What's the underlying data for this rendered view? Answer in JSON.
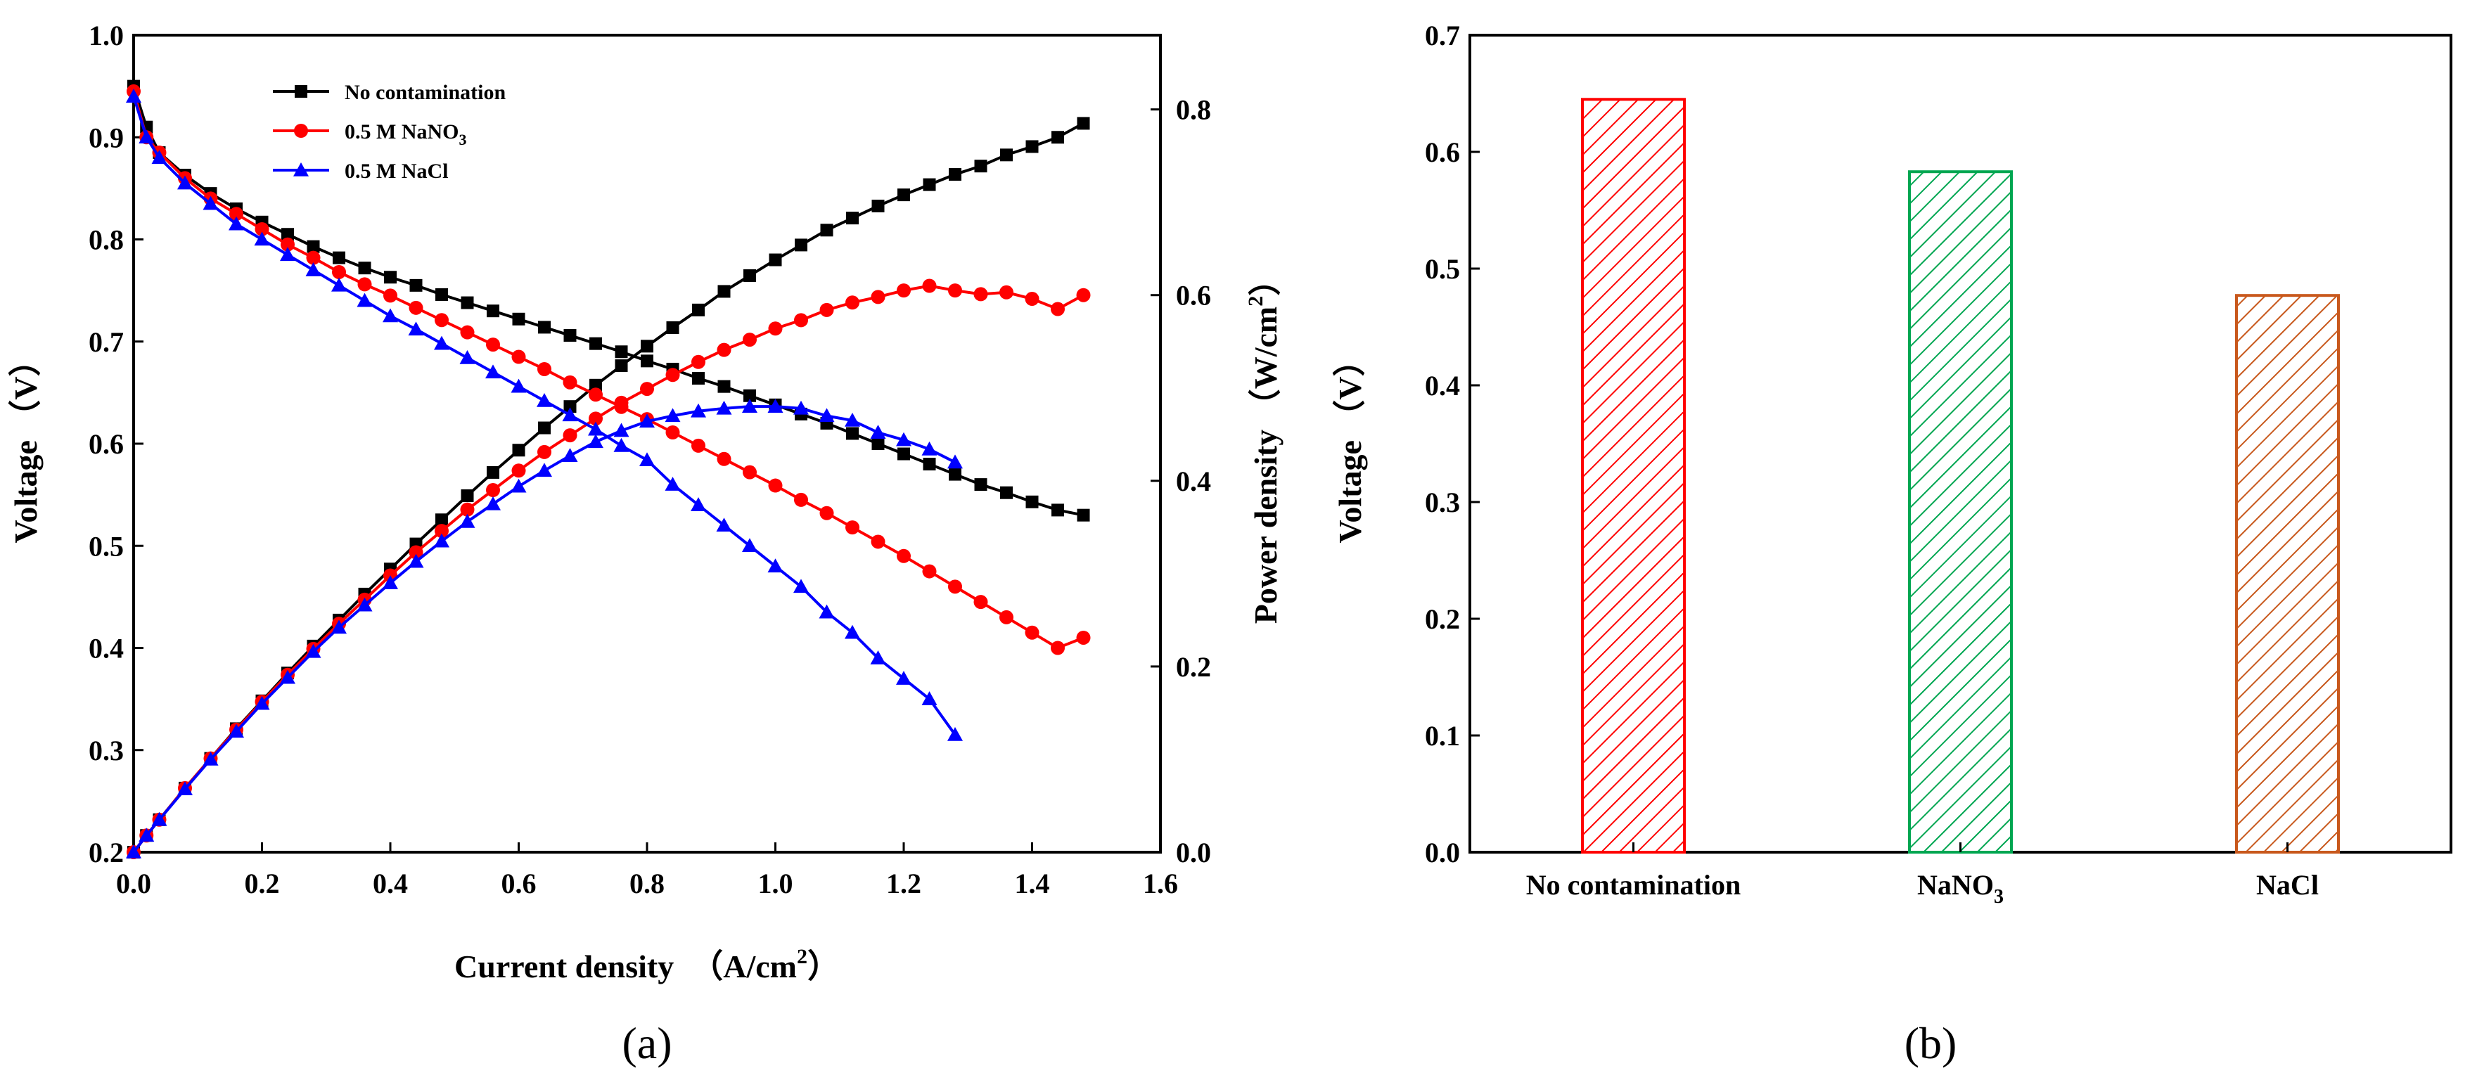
{
  "chart_data": [
    {
      "panel": "(a)",
      "type": "line",
      "xlabel_main": "Current density",
      "xlabel_unit": "（A/cm",
      "xlabel_sup": "2",
      "xlabel_close": "）",
      "ylabel_left": "Voltage  （V）",
      "ylabel_right_main": "Power density  （W/cm",
      "ylabel_right_sup": "2",
      "ylabel_right_close": "）",
      "xlim": [
        0.0,
        1.6
      ],
      "ylim_left": [
        0.2,
        1.0
      ],
      "ylim_right": [
        0.0,
        0.88
      ],
      "xticks": [
        "0.0",
        "0.2",
        "0.4",
        "0.6",
        "0.8",
        "1.0",
        "1.2",
        "1.4",
        "1.6"
      ],
      "yticks_left": [
        "0.2",
        "0.3",
        "0.4",
        "0.5",
        "0.6",
        "0.7",
        "0.8",
        "0.9",
        "1.0"
      ],
      "yticks_right": [
        "0.0",
        "0.2",
        "0.4",
        "0.6",
        "0.8"
      ],
      "legend": [
        {
          "label": "No contamination",
          "sub": "",
          "color": "#000000",
          "marker": "square"
        },
        {
          "label": "0.5 M NaNO",
          "sub": "3",
          "color": "#ff0000",
          "marker": "circle"
        },
        {
          "label": "0.5 M NaCl",
          "sub": "",
          "color": "#0000ff",
          "marker": "triangle"
        }
      ],
      "series": [
        {
          "name": "No contamination",
          "color": "#000000",
          "marker": "square",
          "x": [
            0.0,
            0.02,
            0.04,
            0.08,
            0.12,
            0.16,
            0.2,
            0.24,
            0.28,
            0.32,
            0.36,
            0.4,
            0.44,
            0.48,
            0.52,
            0.56,
            0.6,
            0.64,
            0.68,
            0.72,
            0.76,
            0.8,
            0.84,
            0.88,
            0.92,
            0.96,
            1.0,
            1.04,
            1.08,
            1.12,
            1.16,
            1.2,
            1.24,
            1.28,
            1.32,
            1.36,
            1.4,
            1.44,
            1.48
          ],
          "voltage": [
            0.95,
            0.91,
            0.885,
            0.863,
            0.845,
            0.83,
            0.817,
            0.805,
            0.793,
            0.782,
            0.772,
            0.763,
            0.755,
            0.746,
            0.738,
            0.73,
            0.722,
            0.714,
            0.706,
            0.698,
            0.69,
            0.681,
            0.673,
            0.664,
            0.656,
            0.647,
            0.638,
            0.629,
            0.62,
            0.61,
            0.6,
            0.59,
            0.58,
            0.57,
            0.56,
            0.552,
            0.543,
            0.535,
            0.53
          ],
          "power": [
            0.0,
            0.018,
            0.035,
            0.069,
            0.101,
            0.133,
            0.163,
            0.193,
            0.222,
            0.25,
            0.278,
            0.305,
            0.332,
            0.358,
            0.384,
            0.409,
            0.433,
            0.457,
            0.48,
            0.503,
            0.524,
            0.545,
            0.565,
            0.584,
            0.604,
            0.621,
            0.638,
            0.654,
            0.67,
            0.683,
            0.696,
            0.708,
            0.719,
            0.73,
            0.739,
            0.751,
            0.76,
            0.77,
            0.785
          ]
        },
        {
          "name": "0.5 M NaNO3",
          "color": "#ff0000",
          "marker": "circle",
          "x": [
            0.0,
            0.02,
            0.04,
            0.08,
            0.12,
            0.16,
            0.2,
            0.24,
            0.28,
            0.32,
            0.36,
            0.4,
            0.44,
            0.48,
            0.52,
            0.56,
            0.6,
            0.64,
            0.68,
            0.72,
            0.76,
            0.8,
            0.84,
            0.88,
            0.92,
            0.96,
            1.0,
            1.04,
            1.08,
            1.12,
            1.16,
            1.2,
            1.24,
            1.28,
            1.32,
            1.36,
            1.4,
            1.44,
            1.48
          ],
          "voltage": [
            0.945,
            0.9,
            0.885,
            0.86,
            0.84,
            0.825,
            0.81,
            0.795,
            0.782,
            0.768,
            0.756,
            0.745,
            0.733,
            0.721,
            0.709,
            0.697,
            0.685,
            0.673,
            0.66,
            0.648,
            0.636,
            0.624,
            0.611,
            0.598,
            0.585,
            0.572,
            0.559,
            0.545,
            0.532,
            0.518,
            0.504,
            0.49,
            0.475,
            0.46,
            0.445,
            0.43,
            0.415,
            0.4,
            0.41
          ],
          "power": [
            0.0,
            0.018,
            0.035,
            0.069,
            0.101,
            0.132,
            0.162,
            0.191,
            0.219,
            0.246,
            0.272,
            0.298,
            0.323,
            0.346,
            0.369,
            0.39,
            0.411,
            0.431,
            0.449,
            0.467,
            0.484,
            0.499,
            0.514,
            0.528,
            0.541,
            0.552,
            0.564,
            0.573,
            0.584,
            0.592,
            0.598,
            0.605,
            0.61,
            0.605,
            0.601,
            0.603,
            0.596,
            0.585,
            0.6
          ]
        },
        {
          "name": "0.5 M NaCl",
          "color": "#0000ff",
          "marker": "triangle",
          "x": [
            0.0,
            0.02,
            0.04,
            0.08,
            0.12,
            0.16,
            0.2,
            0.24,
            0.28,
            0.32,
            0.36,
            0.4,
            0.44,
            0.48,
            0.52,
            0.56,
            0.6,
            0.64,
            0.68,
            0.72,
            0.76,
            0.8,
            0.84,
            0.88,
            0.92,
            0.96,
            1.0,
            1.04,
            1.08,
            1.12,
            1.16,
            1.2,
            1.24,
            1.28
          ],
          "voltage": [
            0.94,
            0.9,
            0.88,
            0.855,
            0.835,
            0.815,
            0.8,
            0.785,
            0.77,
            0.755,
            0.74,
            0.725,
            0.712,
            0.698,
            0.684,
            0.67,
            0.656,
            0.642,
            0.628,
            0.614,
            0.598,
            0.584,
            0.56,
            0.54,
            0.52,
            0.5,
            0.48,
            0.46,
            0.435,
            0.415,
            0.39,
            0.37,
            0.35,
            0.315
          ],
          "power": [
            0.0,
            0.018,
            0.035,
            0.068,
            0.1,
            0.13,
            0.16,
            0.188,
            0.216,
            0.242,
            0.266,
            0.29,
            0.313,
            0.335,
            0.356,
            0.375,
            0.394,
            0.411,
            0.427,
            0.442,
            0.454,
            0.464,
            0.47,
            0.475,
            0.478,
            0.48,
            0.48,
            0.478,
            0.47,
            0.465,
            0.452,
            0.444,
            0.434,
            0.42
          ]
        }
      ]
    },
    {
      "panel": "(b)",
      "type": "bar",
      "ylabel": "Voltage  （V）",
      "ylim": [
        0.0,
        0.7
      ],
      "yticks": [
        "0.0",
        "0.1",
        "0.2",
        "0.3",
        "0.4",
        "0.5",
        "0.6",
        "0.7"
      ],
      "categories": [
        {
          "label": "No contamination",
          "sub": ""
        },
        {
          "label": "NaNO",
          "sub": "3"
        },
        {
          "label": "NaCl",
          "sub": ""
        }
      ],
      "values": [
        0.645,
        0.583,
        0.477
      ],
      "colors": [
        "#ff0000",
        "#00a651",
        "#c8581c"
      ],
      "hatch": "diagonal"
    }
  ],
  "labels": {
    "panel_a": "(a)",
    "panel_b": "(b)"
  }
}
